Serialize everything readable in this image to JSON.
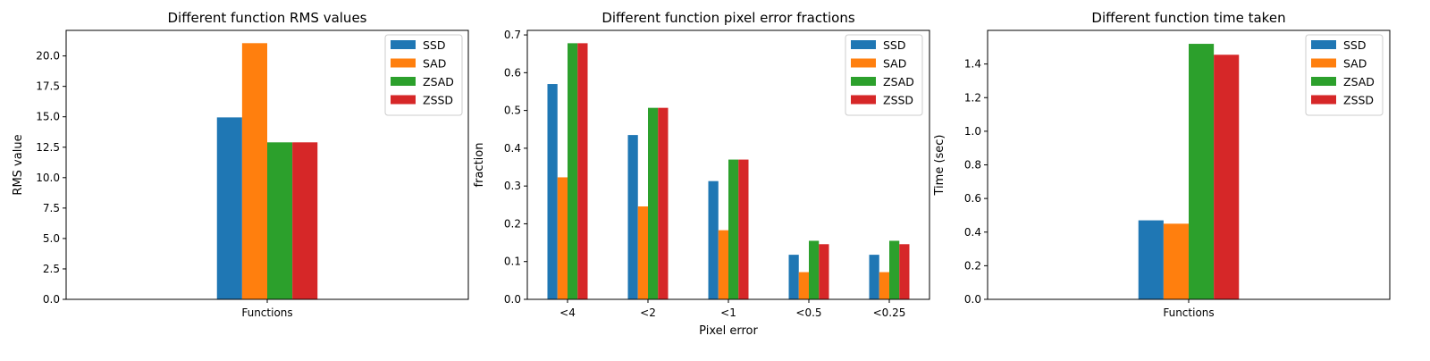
{
  "colors": {
    "SSD": "#1f77b4",
    "SAD": "#ff7f0e",
    "ZSAD": "#2ca02c",
    "ZSSD": "#d62728"
  },
  "chart_data": [
    {
      "type": "bar",
      "title": "Different function RMS values",
      "xlabel": "",
      "ylabel": "RMS value",
      "categories": [
        "Functions"
      ],
      "series": [
        {
          "name": "SSD",
          "values": [
            14.95
          ]
        },
        {
          "name": "SAD",
          "values": [
            21.05
          ]
        },
        {
          "name": "ZSAD",
          "values": [
            12.9
          ]
        },
        {
          "name": "ZSSD",
          "values": [
            12.9
          ]
        }
      ],
      "ylim": [
        0,
        22.1
      ],
      "yticks": [
        0,
        2.5,
        5,
        7.5,
        10,
        12.5,
        15,
        17.5,
        20
      ],
      "ytick_labels": [
        "0.0",
        "2.5",
        "5.0",
        "7.5",
        "10.0",
        "12.5",
        "15.0",
        "17.5",
        "20.0"
      ],
      "legend": "top-right",
      "grid": false
    },
    {
      "type": "bar",
      "title": "Different function pixel error fractions",
      "xlabel": "Pixel error",
      "ylabel": "fraction",
      "categories": [
        "<4",
        "<2",
        "<1",
        "<0.5",
        "<0.25"
      ],
      "series": [
        {
          "name": "SSD",
          "values": [
            0.57,
            0.435,
            0.313,
            0.118,
            0.118
          ]
        },
        {
          "name": "SAD",
          "values": [
            0.323,
            0.246,
            0.183,
            0.072,
            0.072
          ]
        },
        {
          "name": "ZSAD",
          "values": [
            0.678,
            0.507,
            0.37,
            0.155,
            0.155
          ]
        },
        {
          "name": "ZSSD",
          "values": [
            0.678,
            0.507,
            0.37,
            0.146,
            0.146
          ]
        }
      ],
      "ylim": [
        0,
        0.712
      ],
      "yticks": [
        0,
        0.1,
        0.2,
        0.3,
        0.4,
        0.5,
        0.6,
        0.7
      ],
      "ytick_labels": [
        "0.0",
        "0.1",
        "0.2",
        "0.3",
        "0.4",
        "0.5",
        "0.6",
        "0.7"
      ],
      "legend": "top-right",
      "grid": false
    },
    {
      "type": "bar",
      "title": "Different function time taken",
      "xlabel": "",
      "ylabel": "Time (sec)",
      "categories": [
        "Functions"
      ],
      "series": [
        {
          "name": "SSD",
          "values": [
            0.47
          ]
        },
        {
          "name": "SAD",
          "values": [
            0.45
          ]
        },
        {
          "name": "ZSAD",
          "values": [
            1.52
          ]
        },
        {
          "name": "ZSSD",
          "values": [
            1.455
          ]
        }
      ],
      "ylim": [
        0,
        1.6
      ],
      "yticks": [
        0,
        0.2,
        0.4,
        0.6,
        0.8,
        1.0,
        1.2,
        1.4
      ],
      "ytick_labels": [
        "0.0",
        "0.2",
        "0.4",
        "0.6",
        "0.8",
        "1.0",
        "1.2",
        "1.4"
      ],
      "legend": "top-right",
      "grid": false
    }
  ]
}
